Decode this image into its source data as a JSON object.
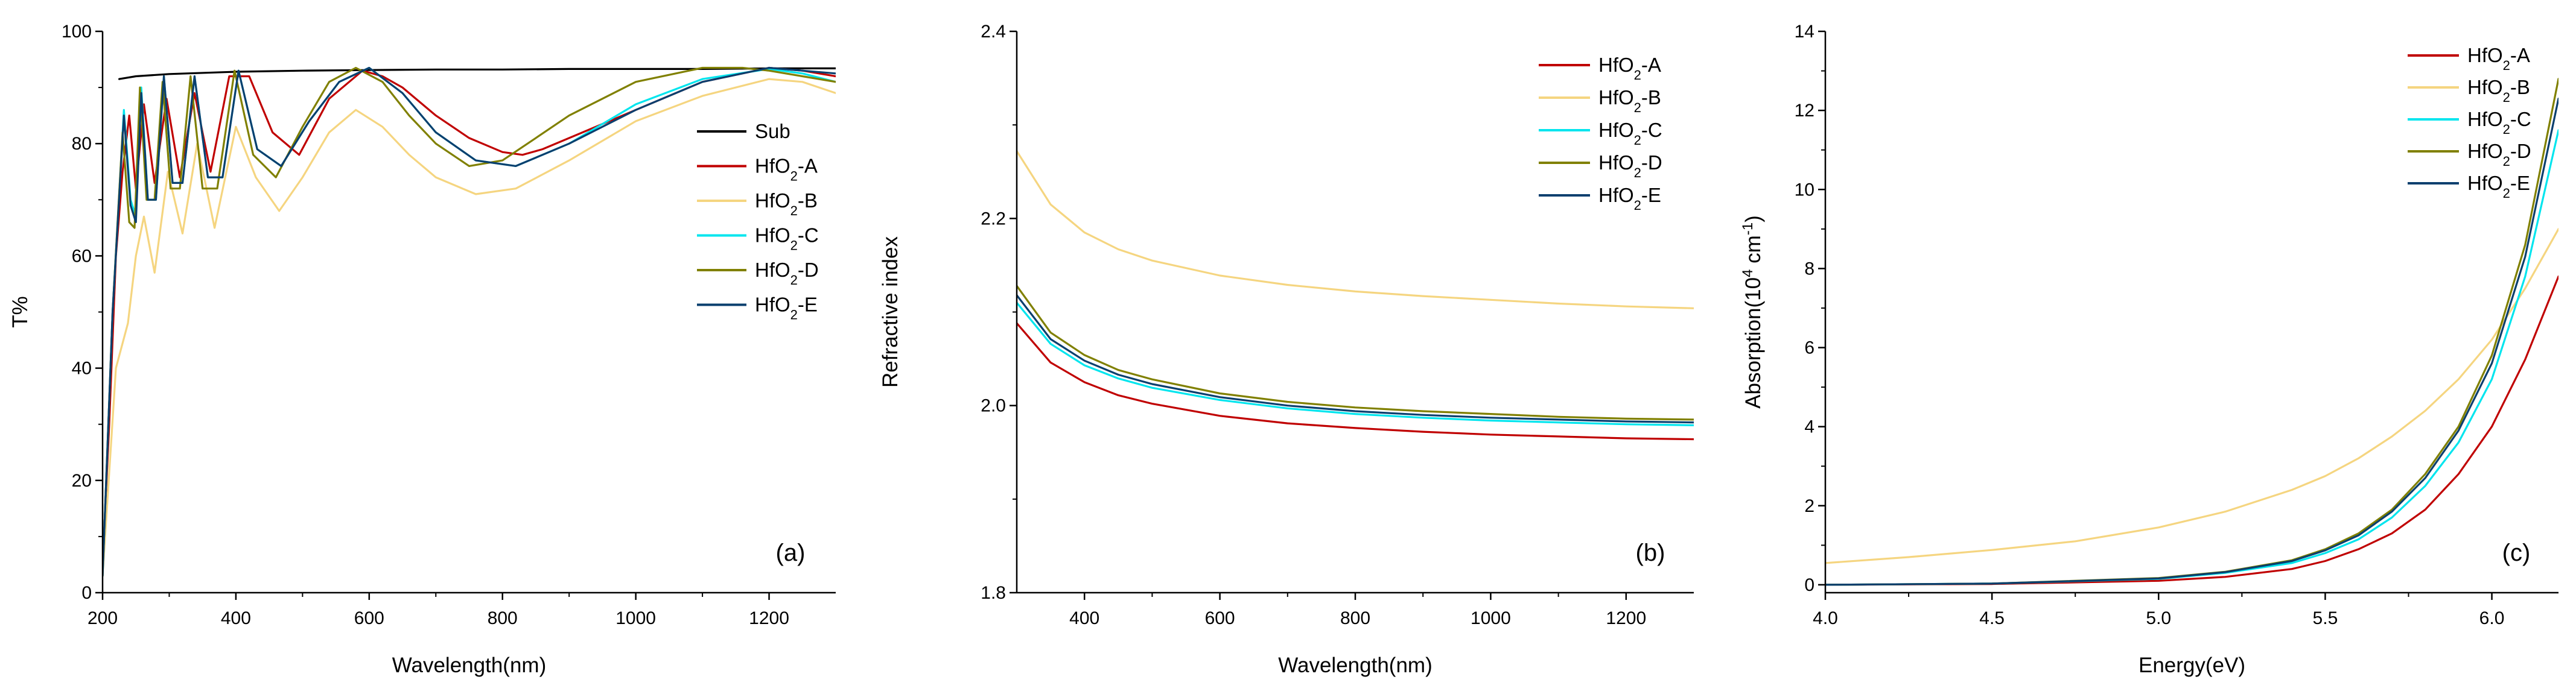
{
  "chart_data": [
    {
      "panel": "a",
      "type": "line",
      "panel_label": "(a)",
      "xlabel": "Wavelength(nm)",
      "ylabel": "T%",
      "xlim": [
        200,
        1300
      ],
      "ylim": [
        0,
        100
      ],
      "xticks": [
        200,
        400,
        600,
        800,
        1000,
        1200
      ],
      "yticks": [
        0,
        20,
        40,
        60,
        80,
        100
      ],
      "legend_position": "center-right",
      "series": [
        {
          "name": "Sub",
          "color": "#000000",
          "legend": [
            {
              "t": "Sub"
            }
          ],
          "x": [
            225,
            250,
            300,
            400,
            500,
            600,
            700,
            800,
            900,
            1000,
            1100,
            1200,
            1300
          ],
          "y": [
            91.5,
            92.0,
            92.4,
            92.8,
            93.0,
            93.1,
            93.2,
            93.2,
            93.3,
            93.3,
            93.3,
            93.4,
            93.4
          ]
        },
        {
          "name": "HfO2-A",
          "color": "#C00000",
          "legend": [
            {
              "t": "HfO"
            },
            {
              "t": "2",
              "sub": true
            },
            {
              "t": "-A"
            }
          ],
          "x": [
            200,
            210,
            220,
            230,
            240,
            250,
            262,
            278,
            296,
            316,
            338,
            362,
            390,
            420,
            455,
            495,
            540,
            590,
            620,
            650,
            700,
            750,
            800,
            830,
            860,
            920,
            1000,
            1100,
            1200,
            1250,
            1300
          ],
          "y": [
            5,
            30,
            60,
            75,
            85,
            72,
            87,
            73,
            88,
            74,
            89,
            75,
            92,
            92,
            82,
            78,
            88,
            93,
            92,
            90,
            85,
            81,
            78.5,
            78,
            79,
            82,
            86,
            91,
            93.5,
            93,
            92
          ]
        },
        {
          "name": "HfO2-B",
          "color": "#F5D580",
          "legend": [
            {
              "t": "HfO"
            },
            {
              "t": "2",
              "sub": true
            },
            {
              "t": "-B"
            }
          ],
          "x": [
            200,
            220,
            238,
            250,
            262,
            278,
            298,
            320,
            342,
            368,
            400,
            430,
            465,
            500,
            540,
            580,
            620,
            660,
            700,
            760,
            820,
            900,
            1000,
            1100,
            1200,
            1250,
            1300
          ],
          "y": [
            3,
            40,
            48,
            60,
            67,
            57,
            75,
            64,
            80,
            65,
            83,
            74,
            68,
            74,
            82,
            86,
            83,
            78,
            74,
            71,
            72,
            77,
            84,
            88.5,
            91.5,
            91,
            89
          ]
        },
        {
          "name": "HfO2-C",
          "color": "#00E5EE",
          "legend": [
            {
              "t": "HfO"
            },
            {
              "t": "2",
              "sub": true
            },
            {
              "t": "-C"
            }
          ],
          "x": [
            200,
            215,
            232,
            242,
            250,
            258,
            268,
            280,
            292,
            305,
            320,
            338,
            358,
            380,
            404,
            432,
            468,
            510,
            555,
            600,
            650,
            700,
            760,
            820,
            900,
            1000,
            1100,
            1200,
            1250,
            1300
          ],
          "y": [
            3,
            50,
            86,
            70,
            67,
            90,
            70,
            70,
            92,
            73,
            73,
            92,
            74,
            74,
            93,
            79,
            76,
            84,
            91,
            93.5,
            89,
            82,
            77,
            76,
            80,
            87,
            91.5,
            93.3,
            92.5,
            91
          ]
        },
        {
          "name": "HfO2-D",
          "color": "#808000",
          "legend": [
            {
              "t": "HfO"
            },
            {
              "t": "2",
              "sub": true
            },
            {
              "t": "-D"
            }
          ],
          "x": [
            200,
            215,
            230,
            240,
            248,
            256,
            266,
            278,
            290,
            302,
            316,
            332,
            350,
            372,
            398,
            426,
            460,
            500,
            540,
            580,
            620,
            660,
            700,
            750,
            800,
            850,
            900,
            1000,
            1100,
            1160,
            1200,
            1250,
            1300
          ],
          "y": [
            3,
            50,
            82,
            66,
            65,
            90,
            70,
            70,
            91,
            72,
            72,
            92,
            72,
            72,
            93,
            78,
            74,
            83,
            91,
            93.5,
            91,
            85,
            80,
            76,
            77,
            81,
            85,
            91,
            93.5,
            93.5,
            93,
            92,
            91
          ]
        },
        {
          "name": "HfO2-E",
          "color": "#0A3F6E",
          "legend": [
            {
              "t": "HfO"
            },
            {
              "t": "2",
              "sub": true
            },
            {
              "t": "-E"
            }
          ],
          "x": [
            200,
            215,
            232,
            242,
            250,
            258,
            268,
            280,
            292,
            305,
            320,
            338,
            358,
            380,
            404,
            432,
            468,
            510,
            555,
            600,
            650,
            700,
            760,
            820,
            900,
            1000,
            1100,
            1200,
            1250,
            1300
          ],
          "y": [
            3,
            50,
            85,
            69,
            66,
            89,
            70,
            70,
            92,
            73,
            73,
            92,
            74,
            74,
            93,
            79,
            76,
            84,
            91,
            93.5,
            89,
            82,
            77,
            76,
            80,
            86,
            91,
            93.5,
            93,
            92.5
          ]
        }
      ]
    },
    {
      "panel": "b",
      "type": "line",
      "panel_label": "(b)",
      "xlabel": "Wavelength(nm)",
      "ylabel": "Refractive index",
      "xlim": [
        300,
        1300
      ],
      "ylim": [
        1.8,
        2.4
      ],
      "xticks": [
        400,
        600,
        800,
        1000,
        1200
      ],
      "yticks": [
        1.8,
        2.0,
        2.2,
        2.4
      ],
      "legend_position": "top-right",
      "series": [
        {
          "name": "HfO2-A",
          "color": "#C00000",
          "legend": [
            {
              "t": "HfO"
            },
            {
              "t": "2",
              "sub": true
            },
            {
              "t": "-A"
            }
          ],
          "x": [
            300,
            350,
            400,
            450,
            500,
            600,
            700,
            800,
            900,
            1000,
            1100,
            1200,
            1300
          ],
          "y": [
            2.088,
            2.046,
            2.025,
            2.011,
            2.002,
            1.989,
            1.981,
            1.976,
            1.972,
            1.969,
            1.967,
            1.965,
            1.964
          ]
        },
        {
          "name": "HfO2-B",
          "color": "#F5D580",
          "legend": [
            {
              "t": "HfO"
            },
            {
              "t": "2",
              "sub": true
            },
            {
              "t": "-B"
            }
          ],
          "x": [
            300,
            350,
            400,
            450,
            500,
            600,
            700,
            800,
            900,
            1000,
            1100,
            1200,
            1300
          ],
          "y": [
            2.272,
            2.215,
            2.185,
            2.167,
            2.155,
            2.139,
            2.129,
            2.122,
            2.117,
            2.113,
            2.109,
            2.106,
            2.104
          ]
        },
        {
          "name": "HfO2-C",
          "color": "#00E5EE",
          "legend": [
            {
              "t": "HfO"
            },
            {
              "t": "2",
              "sub": true
            },
            {
              "t": "-C"
            }
          ],
          "x": [
            300,
            350,
            400,
            450,
            500,
            600,
            700,
            800,
            900,
            1000,
            1100,
            1200,
            1300
          ],
          "y": [
            2.11,
            2.066,
            2.043,
            2.029,
            2.019,
            2.006,
            1.997,
            1.991,
            1.987,
            1.984,
            1.982,
            1.98,
            1.979
          ]
        },
        {
          "name": "HfO2-D",
          "color": "#808000",
          "legend": [
            {
              "t": "HfO"
            },
            {
              "t": "2",
              "sub": true
            },
            {
              "t": "-D"
            }
          ],
          "x": [
            300,
            350,
            400,
            450,
            500,
            600,
            700,
            800,
            900,
            1000,
            1100,
            1200,
            1300
          ],
          "y": [
            2.128,
            2.078,
            2.054,
            2.038,
            2.028,
            2.013,
            2.004,
            1.998,
            1.994,
            1.991,
            1.988,
            1.986,
            1.985
          ]
        },
        {
          "name": "HfO2-E",
          "color": "#0A3F6E",
          "legend": [
            {
              "t": "HfO"
            },
            {
              "t": "2",
              "sub": true
            },
            {
              "t": "-E"
            }
          ],
          "x": [
            300,
            350,
            400,
            450,
            500,
            600,
            700,
            800,
            900,
            1000,
            1100,
            1200,
            1300
          ],
          "y": [
            2.118,
            2.071,
            2.048,
            2.033,
            2.023,
            2.009,
            2.0,
            1.994,
            1.99,
            1.987,
            1.985,
            1.983,
            1.982
          ]
        }
      ]
    },
    {
      "panel": "c",
      "type": "line",
      "panel_label": "(c)",
      "xlabel": "Energy(eV)",
      "ylabel_parts": [
        {
          "t": "Absorption(10"
        },
        {
          "t": "4",
          "sup": true
        },
        {
          "t": " cm"
        },
        {
          "t": "-1",
          "sup": true
        },
        {
          "t": ")"
        }
      ],
      "xlim": [
        4.0,
        6.2
      ],
      "ylim": [
        -0.2,
        14
      ],
      "xticks": [
        4.0,
        4.5,
        5.0,
        5.5,
        6.0
      ],
      "xtick_labels": [
        "4.0",
        "4.5",
        "5.0",
        "5.5",
        "6.0"
      ],
      "yticks": [
        0,
        2,
        4,
        6,
        8,
        10,
        12,
        14
      ],
      "legend_position": "top-right",
      "series": [
        {
          "name": "HfO2-A",
          "color": "#C00000",
          "legend": [
            {
              "t": "HfO"
            },
            {
              "t": "2",
              "sub": true
            },
            {
              "t": "-A"
            }
          ],
          "x": [
            4.0,
            4.5,
            5.0,
            5.2,
            5.4,
            5.5,
            5.6,
            5.7,
            5.8,
            5.9,
            6.0,
            6.1,
            6.2
          ],
          "y": [
            0,
            0.02,
            0.1,
            0.2,
            0.4,
            0.6,
            0.9,
            1.3,
            1.9,
            2.8,
            4.0,
            5.7,
            7.8
          ]
        },
        {
          "name": "HfO2-B",
          "color": "#F5D580",
          "legend": [
            {
              "t": "HfO"
            },
            {
              "t": "2",
              "sub": true
            },
            {
              "t": "-B"
            }
          ],
          "x": [
            4.0,
            4.25,
            4.5,
            4.75,
            5.0,
            5.2,
            5.4,
            5.5,
            5.6,
            5.7,
            5.8,
            5.9,
            6.0,
            6.1,
            6.2
          ],
          "y": [
            0.55,
            0.7,
            0.88,
            1.1,
            1.45,
            1.85,
            2.4,
            2.75,
            3.2,
            3.75,
            4.4,
            5.2,
            6.2,
            7.5,
            9.0
          ]
        },
        {
          "name": "HfO2-C",
          "color": "#00E5EE",
          "legend": [
            {
              "t": "HfO"
            },
            {
              "t": "2",
              "sub": true
            },
            {
              "t": "-C"
            }
          ],
          "x": [
            4.0,
            4.5,
            5.0,
            5.2,
            5.4,
            5.5,
            5.6,
            5.7,
            5.8,
            5.9,
            6.0,
            6.1,
            6.2
          ],
          "y": [
            0,
            0.03,
            0.15,
            0.3,
            0.55,
            0.8,
            1.15,
            1.7,
            2.5,
            3.6,
            5.2,
            7.8,
            11.5
          ]
        },
        {
          "name": "HfO2-D",
          "color": "#808000",
          "legend": [
            {
              "t": "HfO"
            },
            {
              "t": "2",
              "sub": true
            },
            {
              "t": "-D"
            }
          ],
          "x": [
            4.0,
            4.5,
            5.0,
            5.2,
            5.4,
            5.5,
            5.6,
            5.7,
            5.8,
            5.9,
            6.0,
            6.1,
            6.2
          ],
          "y": [
            0,
            0.03,
            0.17,
            0.33,
            0.62,
            0.9,
            1.3,
            1.9,
            2.8,
            4.0,
            5.8,
            8.6,
            12.8
          ]
        },
        {
          "name": "HfO2-E",
          "color": "#0A3F6E",
          "legend": [
            {
              "t": "HfO"
            },
            {
              "t": "2",
              "sub": true
            },
            {
              "t": "-E"
            }
          ],
          "x": [
            4.0,
            4.5,
            5.0,
            5.2,
            5.4,
            5.5,
            5.6,
            5.7,
            5.8,
            5.9,
            6.0,
            6.1,
            6.2
          ],
          "y": [
            0,
            0.03,
            0.16,
            0.32,
            0.6,
            0.87,
            1.25,
            1.85,
            2.7,
            3.9,
            5.6,
            8.3,
            12.3
          ]
        }
      ]
    }
  ]
}
